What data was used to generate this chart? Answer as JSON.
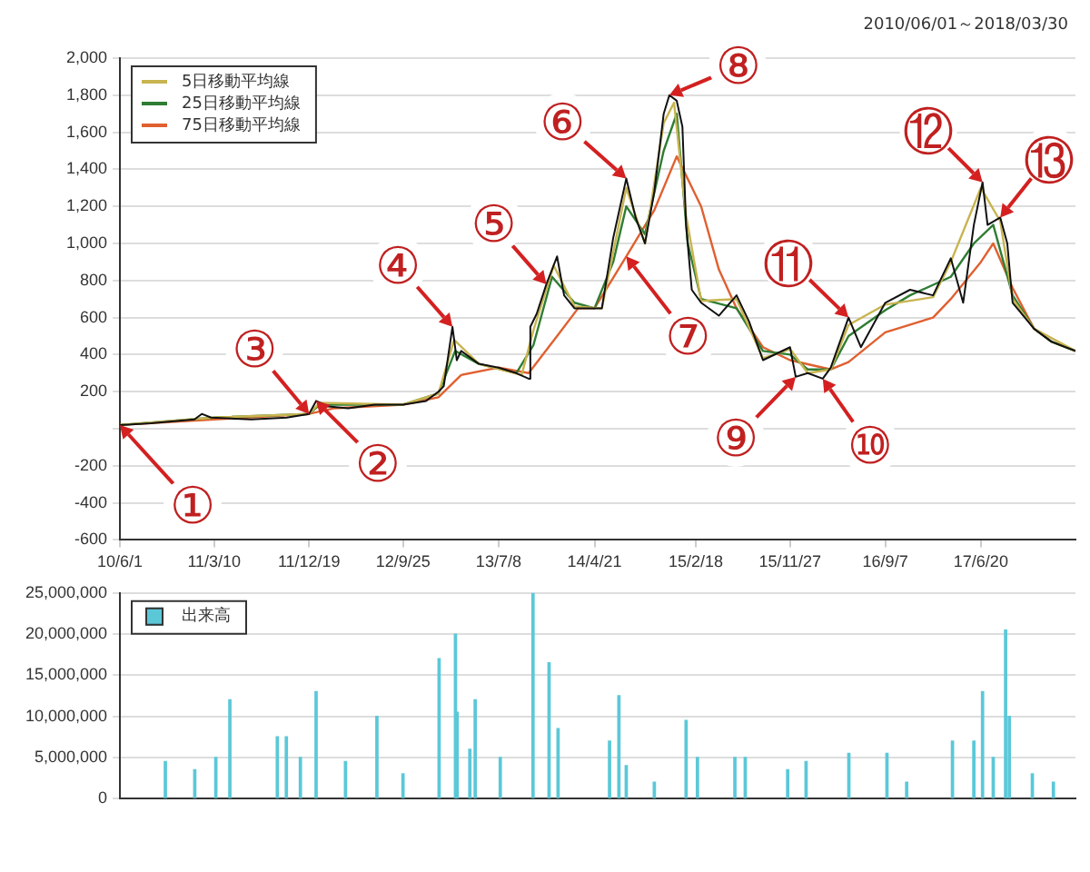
{
  "chart_data": [
    {
      "type": "line",
      "subtitle": "2010/06/01～2018/03/30",
      "legend": "top left",
      "grid": "y",
      "marker": "none",
      "line_style": "solid",
      "xlim": [
        "2010-06-01",
        "2018-03-30"
      ],
      "xticks": [
        {
          "value": "2010-06-01",
          "label": "10/6/1"
        },
        {
          "value": "2011-03-10",
          "label": "11/3/10"
        },
        {
          "value": "2011-12-19",
          "label": "11/12/19"
        },
        {
          "value": "2012-09-25",
          "label": "12/9/25"
        },
        {
          "value": "2013-07-08",
          "label": "13/7/8"
        },
        {
          "value": "2014-04-21",
          "label": "14/4/21"
        },
        {
          "value": "2015-02-18",
          "label": "15/2/18"
        },
        {
          "value": "2015-11-27",
          "label": "15/11/27"
        },
        {
          "value": "2016-09-07",
          "label": "16/9/7"
        },
        {
          "value": "2017-06-20",
          "label": "17/6/20"
        }
      ],
      "ylim": [
        -600,
        2000
      ],
      "yticks": [
        {
          "value": -600,
          "label": "-600"
        },
        {
          "value": -400,
          "label": "-400"
        },
        {
          "value": -200,
          "label": "-200"
        },
        {
          "value": 0,
          "label": null
        },
        {
          "value": 200,
          "label": "200"
        },
        {
          "value": 400,
          "label": "400"
        },
        {
          "value": 600,
          "label": "600"
        },
        {
          "value": 800,
          "label": "800"
        },
        {
          "value": 1000,
          "label": "1,000"
        },
        {
          "value": 1200,
          "label": "1,200"
        },
        {
          "value": 1400,
          "label": "1,400"
        },
        {
          "value": 1600,
          "label": "1,600"
        },
        {
          "value": 1800,
          "label": "1,800"
        },
        {
          "value": 2000,
          "label": "2,000"
        }
      ],
      "series": [
        {
          "color": "#111111",
          "x": [
            "2010-06-01",
            "2010-09-01",
            "2011-01-10",
            "2011-02-01",
            "2011-03-01",
            "2011-06-29",
            "2011-10-13",
            "2011-12-19",
            "2012-01-09",
            "2012-02-15",
            "2012-04-14",
            "2012-07-02",
            "2012-09-25",
            "2012-12-03",
            "2013-01-09",
            "2013-01-25",
            "2013-02-20",
            "2013-03-05",
            "2013-03-18",
            "2013-05-10",
            "2013-07-08",
            "2013-08-30",
            "2013-10-06",
            "2013-10-11",
            "2013-10-30",
            "2013-11-28",
            "2013-12-30",
            "2014-01-20",
            "2014-02-20",
            "2014-04-21",
            "2014-05-13",
            "2014-06-16",
            "2014-07-25",
            "2014-08-22",
            "2014-09-19",
            "2014-10-17",
            "2014-11-14",
            "2014-12-01",
            "2014-12-23",
            "2015-01-09",
            "2015-01-20",
            "2015-02-06",
            "2015-03-06",
            "2015-04-28",
            "2015-06-20",
            "2015-07-27",
            "2015-09-07",
            "2015-11-27",
            "2015-12-14",
            "2016-01-19",
            "2016-03-04",
            "2016-03-28",
            "2016-05-20",
            "2016-06-26",
            "2016-09-07",
            "2016-11-20",
            "2017-01-28",
            "2017-03-22",
            "2017-04-28",
            "2017-05-30",
            "2017-06-25",
            "2017-07-10",
            "2017-08-17",
            "2017-09-07",
            "2017-09-23",
            "2017-11-26",
            "2018-01-17",
            "2018-03-30"
          ],
          "values": [
            20,
            30,
            50,
            80,
            60,
            50,
            60,
            80,
            150,
            120,
            110,
            130,
            130,
            150,
            200,
            230,
            550,
            370,
            420,
            350,
            330,
            300,
            270,
            550,
            620,
            780,
            930,
            720,
            650,
            650,
            650,
            1030,
            1350,
            1140,
            1000,
            1280,
            1700,
            1800,
            1770,
            1630,
            1100,
            750,
            680,
            610,
            720,
            580,
            370,
            440,
            280,
            300,
            270,
            330,
            600,
            440,
            680,
            750,
            720,
            920,
            680,
            1100,
            1330,
            1100,
            1140,
            1000,
            680,
            540,
            470,
            420
          ]
        },
        {
          "name": "5日移動平均線",
          "color": "#c8b450",
          "x": [
            "2010-06-01",
            "2011-03-10",
            "2011-12-19",
            "2012-01-20",
            "2012-09-25",
            "2013-01-09",
            "2013-02-25",
            "2013-05-10",
            "2013-09-15",
            "2013-10-20",
            "2013-12-20",
            "2014-02-20",
            "2014-05-13",
            "2014-07-25",
            "2014-09-19",
            "2014-11-14",
            "2014-12-15",
            "2015-01-20",
            "2015-03-06",
            "2015-06-20",
            "2015-09-07",
            "2015-11-27",
            "2016-01-19",
            "2016-03-28",
            "2016-05-20",
            "2016-09-07",
            "2017-01-28",
            "2017-03-22",
            "2017-06-20",
            "2017-08-17",
            "2017-09-23",
            "2017-11-26",
            "2018-03-30"
          ],
          "values": [
            20,
            60,
            80,
            140,
            130,
            190,
            480,
            350,
            290,
            530,
            880,
            660,
            650,
            1300,
            1000,
            1650,
            1760,
            1150,
            690,
            700,
            380,
            430,
            300,
            320,
            560,
            670,
            710,
            900,
            1300,
            1120,
            700,
            540,
            420
          ]
        },
        {
          "name": "25日移動平均線",
          "color": "#2e7d32",
          "x": [
            "2010-06-01",
            "2011-03-10",
            "2011-12-19",
            "2012-01-20",
            "2012-09-25",
            "2013-01-09",
            "2013-02-28",
            "2013-05-10",
            "2013-08-30",
            "2013-10-20",
            "2013-12-15",
            "2014-02-20",
            "2014-04-21",
            "2014-06-16",
            "2014-07-25",
            "2014-09-19",
            "2014-11-14",
            "2014-12-23",
            "2015-01-25",
            "2015-03-06",
            "2015-06-20",
            "2015-09-07",
            "2015-11-27",
            "2016-01-19",
            "2016-03-28",
            "2016-05-20",
            "2016-09-07",
            "2016-11-20",
            "2017-03-22",
            "2017-05-30",
            "2017-07-27",
            "2017-09-23",
            "2017-11-26",
            "2018-01-17",
            "2018-03-30"
          ],
          "values": [
            20,
            60,
            80,
            130,
            130,
            190,
            420,
            350,
            300,
            450,
            820,
            680,
            650,
            900,
            1200,
            1050,
            1500,
            1700,
            1000,
            700,
            650,
            420,
            400,
            320,
            320,
            500,
            640,
            720,
            820,
            1000,
            1100,
            720,
            540,
            470,
            420
          ]
        },
        {
          "name": "75日移動平均線",
          "color": "#e06030",
          "x": [
            "2010-06-01",
            "2011-03-10",
            "2011-12-19",
            "2012-03-01",
            "2012-09-25",
            "2013-01-09",
            "2013-03-18",
            "2013-07-08",
            "2013-10-06",
            "2013-12-30",
            "2014-03-03",
            "2014-04-21",
            "2014-07-25",
            "2014-10-17",
            "2014-12-23",
            "2015-03-06",
            "2015-04-28",
            "2015-06-20",
            "2015-09-07",
            "2015-11-27",
            "2016-03-28",
            "2016-05-20",
            "2016-09-07",
            "2017-01-28",
            "2017-03-22",
            "2017-06-20",
            "2017-07-27",
            "2017-09-23",
            "2017-11-26",
            "2018-01-17",
            "2018-03-30"
          ],
          "values": [
            20,
            50,
            80,
            110,
            130,
            170,
            290,
            330,
            300,
            500,
            650,
            650,
            930,
            1180,
            1470,
            1200,
            860,
            650,
            440,
            370,
            320,
            360,
            520,
            600,
            700,
            900,
            1000,
            760,
            540,
            470,
            420
          ]
        }
      ],
      "annotations": [
        {
          "text": "①",
          "x": "2010-06-01",
          "y": 20
        },
        {
          "text": "②",
          "x": "2012-01-09",
          "y": 150
        },
        {
          "text": "③",
          "x": "2011-12-19",
          "y": 80
        },
        {
          "text": "④",
          "x": "2013-02-20",
          "y": 550
        },
        {
          "text": "⑤",
          "x": "2013-11-28",
          "y": 780
        },
        {
          "text": "⑥",
          "x": "2014-07-25",
          "y": 1350
        },
        {
          "text": "⑦",
          "x": "2014-07-25",
          "y": 930
        },
        {
          "text": "⑧",
          "x": "2014-12-01",
          "y": 1800
        },
        {
          "text": "⑨",
          "x": "2015-12-14",
          "y": 280
        },
        {
          "text": "⑩",
          "x": "2016-03-04",
          "y": 270
        },
        {
          "text": "⑪",
          "x": "2016-05-20",
          "y": 600
        },
        {
          "text": "⑫",
          "x": "2017-06-25",
          "y": 1330
        },
        {
          "text": "⑬",
          "x": "2017-08-17",
          "y": 1140
        }
      ]
    },
    {
      "type": "bar",
      "legend": "top left",
      "grid": "y",
      "tick_labels": "y",
      "xlim": [
        "2010-06-01",
        "2018-03-30"
      ],
      "ylim": [
        0,
        25000000
      ],
      "yticks": [
        {
          "value": 0,
          "label": "0"
        },
        {
          "value": 5000000,
          "label": "5,000,000"
        },
        {
          "value": 10000000,
          "label": "10,000,000"
        },
        {
          "value": 15000000,
          "label": "15,000,000"
        },
        {
          "value": 20000000,
          "label": "20,000,000"
        },
        {
          "value": 25000000,
          "label": "25,000,000"
        }
      ],
      "series": [
        {
          "name": "出来高",
          "color": "#5bc8d8",
          "x": [
            "2010-10-15",
            "2011-01-11",
            "2011-03-15",
            "2011-04-26",
            "2011-09-15",
            "2011-10-12",
            "2011-11-23",
            "2012-01-09",
            "2012-04-06",
            "2012-07-09",
            "2012-09-25",
            "2013-01-11",
            "2013-03-01",
            "2013-03-06",
            "2013-04-13",
            "2013-04-29",
            "2013-07-13",
            "2013-10-19",
            "2013-12-06",
            "2014-01-02",
            "2014-06-05",
            "2014-07-03",
            "2014-07-25",
            "2014-10-17",
            "2015-01-20",
            "2015-02-23",
            "2015-06-15",
            "2015-07-16",
            "2015-11-20",
            "2016-01-14",
            "2016-05-21",
            "2016-09-12",
            "2016-11-10",
            "2017-03-27",
            "2017-05-30",
            "2017-06-25",
            "2017-07-27",
            "2017-09-02",
            "2017-09-13",
            "2017-11-21",
            "2018-01-23"
          ],
          "values": [
            4500000,
            3500000,
            5000000,
            12000000,
            7500000,
            7500000,
            5000000,
            13000000,
            4500000,
            10000000,
            3000000,
            17000000,
            20000000,
            10500000,
            6000000,
            12000000,
            5000000,
            25000000,
            16500000,
            8500000,
            7000000,
            12500000,
            4000000,
            2000000,
            9500000,
            5000000,
            5000000,
            5000000,
            3500000,
            4500000,
            5500000,
            5500000,
            2000000,
            7000000,
            7000000,
            13000000,
            5000000,
            20500000,
            10000000,
            3000000,
            2000000
          ]
        }
      ]
    }
  ]
}
